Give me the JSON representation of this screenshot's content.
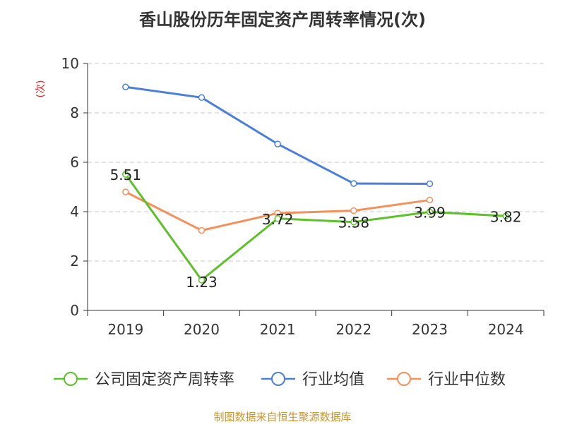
{
  "chart_data": {
    "type": "line",
    "title": "香山股份历年固定资产周转率情况(次)",
    "ylabel": "(次)",
    "categories": [
      "2019",
      "2020",
      "2021",
      "2022",
      "2023",
      "2024"
    ],
    "ylim": [
      0,
      10
    ],
    "yticks": [
      0,
      2,
      4,
      6,
      8,
      10
    ],
    "grid": true,
    "legend_position": "bottom",
    "series": [
      {
        "name": "公司固定资产周转率",
        "color": "#5cc12a",
        "values": [
          5.51,
          1.23,
          3.72,
          3.58,
          3.99,
          3.82
        ],
        "labels": [
          "5.51",
          "1.23",
          "3.72",
          "3.58",
          "3.99",
          "3.82"
        ]
      },
      {
        "name": "行业均值",
        "color": "#4a7fdb",
        "values": [
          9.05,
          8.62,
          6.74,
          5.14,
          5.13,
          null
        ]
      },
      {
        "name": "行业中位数",
        "color": "#f4905a",
        "values": [
          4.8,
          3.24,
          3.94,
          4.04,
          4.47,
          null
        ]
      }
    ]
  },
  "source": {
    "text": "制图数据来自恒生聚源数据库",
    "color": "#c8962e"
  },
  "colors": {
    "axis": "#333333",
    "grid": "#c8c8c8",
    "ylabel": "#e02020"
  }
}
